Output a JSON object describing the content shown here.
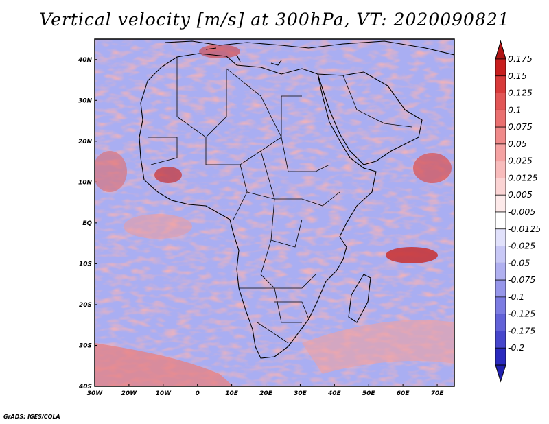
{
  "title": "Vertical velocity [m/s] at 300hPa, VT: 2020090821",
  "credit": "GrADS: IGES/COLA",
  "map": {
    "lon_range": [
      -30,
      75
    ],
    "lat_range": [
      -40,
      45
    ],
    "lat_ticks": [
      {
        "value": 40,
        "label": "40N"
      },
      {
        "value": 30,
        "label": "30N"
      },
      {
        "value": 20,
        "label": "20N"
      },
      {
        "value": 10,
        "label": "10N"
      },
      {
        "value": 0,
        "label": "EQ"
      },
      {
        "value": -10,
        "label": "10S"
      },
      {
        "value": -20,
        "label": "20S"
      },
      {
        "value": -30,
        "label": "30S"
      },
      {
        "value": -40,
        "label": "40S"
      }
    ],
    "lon_ticks": [
      {
        "value": -30,
        "label": "30W"
      },
      {
        "value": -20,
        "label": "20W"
      },
      {
        "value": -10,
        "label": "10W"
      },
      {
        "value": 0,
        "label": "0"
      },
      {
        "value": 10,
        "label": "10E"
      },
      {
        "value": 20,
        "label": "20E"
      },
      {
        "value": 30,
        "label": "30E"
      },
      {
        "value": 40,
        "label": "40E"
      },
      {
        "value": 50,
        "label": "50E"
      },
      {
        "value": 60,
        "label": "60E"
      },
      {
        "value": 70,
        "label": "70E"
      }
    ]
  },
  "colorbar": {
    "levels": [
      {
        "label": "0.175",
        "color": "#c81e1e"
      },
      {
        "label": "0.15",
        "color": "#d83a3a"
      },
      {
        "label": "0.125",
        "color": "#e25656"
      },
      {
        "label": "0.1",
        "color": "#ea7070"
      },
      {
        "label": "0.075",
        "color": "#f08a8a"
      },
      {
        "label": "0.05",
        "color": "#f5a3a3"
      },
      {
        "label": "0.025",
        "color": "#f8bcbc"
      },
      {
        "label": "0.0125",
        "color": "#fbd4d4"
      },
      {
        "label": "0.005",
        "color": "#fdeaea"
      },
      {
        "label": "-0.005",
        "color": "#ffffff"
      },
      {
        "label": "-0.0125",
        "color": "#e1e1fb"
      },
      {
        "label": "-0.025",
        "color": "#c8c8f6"
      },
      {
        "label": "-0.05",
        "color": "#b0b0f0"
      },
      {
        "label": "-0.075",
        "color": "#9696ea"
      },
      {
        "label": "-0.1",
        "color": "#7c7ce2"
      },
      {
        "label": "-0.125",
        "color": "#6262d8"
      },
      {
        "label": "-0.175",
        "color": "#4646cc"
      },
      {
        "label": "-0.2",
        "color": "#2a2abe"
      }
    ],
    "top_arrow_color": "#b01414",
    "bottom_arrow_color": "#2020b0"
  }
}
